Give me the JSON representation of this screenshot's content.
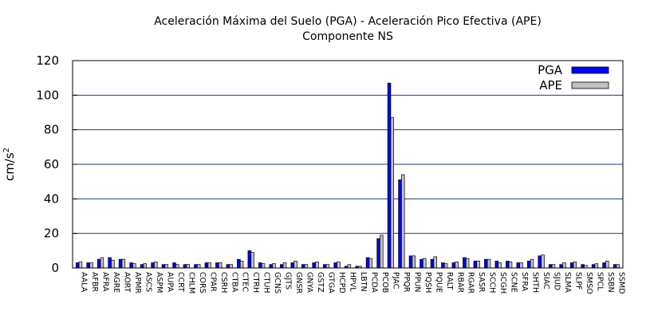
{
  "chart_data": {
    "type": "bar",
    "title": "Aceleración Máxima del Suelo (PGA) -   Aceleración Pico Efectiva (APE)",
    "subtitle": "Componente NS",
    "xlabel": "",
    "ylabel": "cm/s",
    "ylabel_sup": "2",
    "ylim": [
      0,
      120
    ],
    "yticks": [
      0,
      20,
      40,
      60,
      80,
      100,
      120
    ],
    "grid": true,
    "legend_position": "top-right",
    "categories": [
      "AALA",
      "AFBR",
      "AFRA",
      "AGRE",
      "AORT",
      "APMR",
      "ASCS",
      "ASPM",
      "AUPA",
      "CCRT",
      "CHLM",
      "CORS",
      "CPAR",
      "CSRH",
      "CTBA",
      "CTEC",
      "CTRH",
      "CTUH",
      "GCNS",
      "GJTS",
      "GNSR",
      "GNYA",
      "GSTZ",
      "GTGA",
      "HCPD",
      "HPVL",
      "LBTN",
      "PCDA",
      "PCOB",
      "PJAC",
      "PPQR",
      "PPUN",
      "PQSH",
      "PQUE",
      "RALT",
      "RBAR",
      "RGAR",
      "SASR",
      "SCCH",
      "SCGH",
      "SCNE",
      "SFRA",
      "SHTH",
      "SIAC",
      "SJUD",
      "SLMA",
      "SLPF",
      "SMSO",
      "SPCL",
      "SSBN",
      "SSMD"
    ],
    "series": [
      {
        "name": "PGA",
        "color": "#0000ff",
        "values": [
          3,
          3,
          5,
          6,
          5,
          3,
          2,
          3,
          2,
          3,
          2,
          2,
          3,
          3,
          2,
          5,
          10,
          3,
          2,
          2,
          3,
          2,
          3,
          2,
          3,
          1,
          1,
          6,
          17,
          107,
          51,
          7,
          5,
          5,
          3,
          3,
          6,
          4,
          5,
          4,
          4,
          3,
          4,
          7,
          2,
          2,
          3,
          2,
          2,
          3,
          2
        ]
      },
      {
        "name": "APE",
        "color": "#c0c0c0",
        "values": [
          3.5,
          3,
          6,
          4.5,
          5,
          2.5,
          2.5,
          3.5,
          2,
          2,
          2,
          2,
          3,
          3,
          2,
          4,
          9,
          2.5,
          2.5,
          3,
          4,
          2,
          3.5,
          2,
          3.5,
          2,
          1,
          5.5,
          19,
          87,
          54,
          7,
          5.5,
          6.5,
          2.5,
          3.5,
          5.5,
          4,
          5,
          3,
          3.5,
          3,
          5,
          7.5,
          2,
          3,
          3.5,
          1.5,
          2.5,
          4,
          2
        ]
      }
    ]
  }
}
